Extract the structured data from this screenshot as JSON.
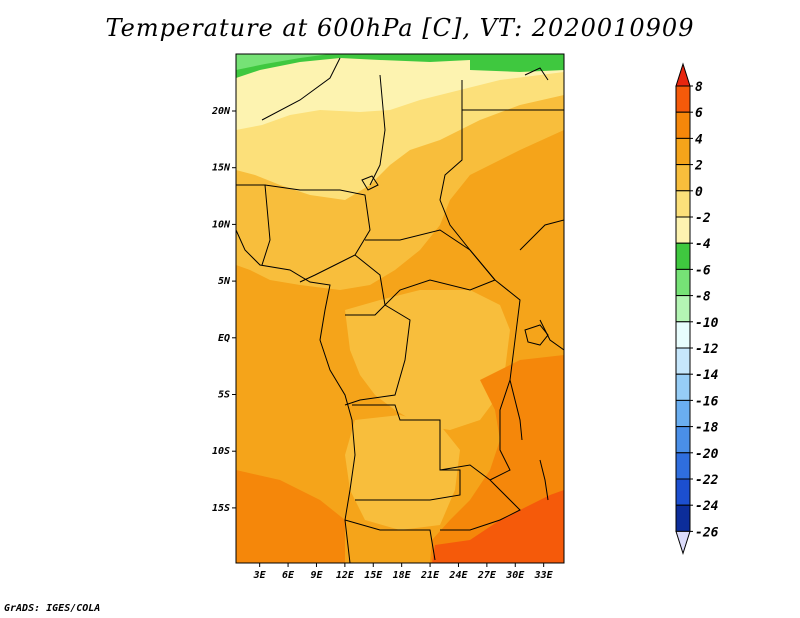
{
  "title": "Temperature at 600hPa [C], VT: 2020010909",
  "credit": "GrADS: IGES/COLA",
  "map": {
    "lat_labels": [
      {
        "label": "20N",
        "lat": 20
      },
      {
        "label": "15N",
        "lat": 15
      },
      {
        "label": "10N",
        "lat": 10
      },
      {
        "label": "5N",
        "lat": 5
      },
      {
        "label": "EQ",
        "lat": 0
      },
      {
        "label": "5S",
        "lat": -5
      },
      {
        "label": "10S",
        "lat": -10
      },
      {
        "label": "15S",
        "lat": -15
      }
    ],
    "lon_labels": [
      {
        "label": "3E",
        "lon": 3
      },
      {
        "label": "6E",
        "lon": 6
      },
      {
        "label": "9E",
        "lon": 9
      },
      {
        "label": "12E",
        "lon": 12
      },
      {
        "label": "15E",
        "lon": 15
      },
      {
        "label": "18E",
        "lon": 18
      },
      {
        "label": "21E",
        "lon": 21
      },
      {
        "label": "24E",
        "lon": 24
      },
      {
        "label": "27E",
        "lon": 27
      },
      {
        "label": "30E",
        "lon": 30
      },
      {
        "label": "33E",
        "lon": 33
      }
    ]
  },
  "colorbar": {
    "levels": [
      "8",
      "6",
      "4",
      "2",
      "0",
      "-2",
      "-4",
      "-6",
      "-8",
      "-10",
      "-12",
      "-14",
      "-16",
      "-18",
      "-20",
      "-22",
      "-24",
      "-26"
    ],
    "colors": [
      "#e8260f",
      "#f55a0a",
      "#f5870a",
      "#f5a41a",
      "#f8be3c",
      "#fce07a",
      "#fdf3b0",
      "#3fc83f",
      "#76e276",
      "#b4f5b4",
      "#e8fdfd",
      "#c6e7fc",
      "#96cdf6",
      "#6aaef0",
      "#4a8fe8",
      "#2f6ede",
      "#1c4fd0",
      "#0c2d9a",
      "#06105c",
      "#dcdcfa"
    ],
    "top_color": "#e8260f",
    "bottom_color": "#dcdcfa"
  }
}
